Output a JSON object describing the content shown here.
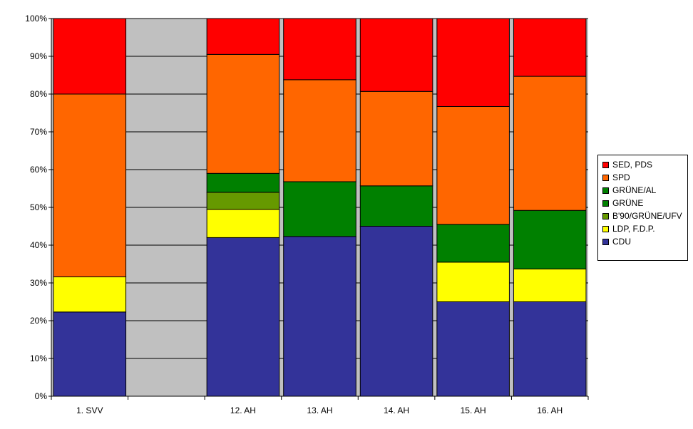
{
  "chart_data": {
    "type": "bar",
    "stacked": true,
    "percent_stacked": true,
    "categories": [
      "1. SVV",
      "",
      "12. AH",
      "13. AH",
      "14. AH",
      "15. AH",
      "16. AH"
    ],
    "ylim": [
      0,
      100
    ],
    "yticks": [
      "0%",
      "10%",
      "20%",
      "30%",
      "40%",
      "50%",
      "60%",
      "70%",
      "80%",
      "90%",
      "100%"
    ],
    "grid": true,
    "plot_background": "#c0c0c0",
    "legend_position": "right",
    "series": [
      {
        "name": "CDU",
        "color": "#333399",
        "values": [
          22.3,
          null,
          42.0,
          42.3,
          45.0,
          25.0,
          25.0
        ]
      },
      {
        "name": "LDP, F.D.P.",
        "color": "#ffff00",
        "values": [
          9.3,
          null,
          7.5,
          0,
          0,
          10.5,
          8.7
        ]
      },
      {
        "name": "B'90/GRÜNE/UFV",
        "color": "#669900",
        "values": [
          0,
          null,
          4.5,
          0,
          0,
          0,
          0
        ]
      },
      {
        "name": "GRÜNE",
        "color": "#008000",
        "values": [
          0,
          null,
          0,
          14.5,
          10.7,
          10.0,
          15.5
        ]
      },
      {
        "name": "GRÜNE/AL",
        "color": "#008000",
        "values": [
          0,
          null,
          5.0,
          0,
          0,
          0,
          0
        ]
      },
      {
        "name": "SPD",
        "color": "#ff6600",
        "values": [
          48.4,
          null,
          31.5,
          27.0,
          25.0,
          31.2,
          35.5
        ]
      },
      {
        "name": "SED, PDS",
        "color": "#ff0000",
        "values": [
          20.0,
          null,
          9.5,
          16.2,
          19.3,
          23.3,
          15.3
        ]
      }
    ],
    "legend_order": [
      "SED, PDS",
      "SPD",
      "GRÜNE/AL",
      "GRÜNE",
      "B'90/GRÜNE/UFV",
      "LDP, F.D.P.",
      "CDU"
    ]
  }
}
